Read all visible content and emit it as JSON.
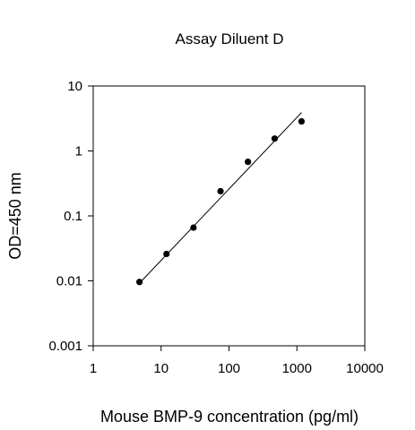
{
  "chart_data": {
    "type": "scatter",
    "title": "Assay Diluent D",
    "xlabel": "Mouse BMP-9 concentration (pg/ml)",
    "ylabel": "OD=450 nm",
    "x_scale": "log",
    "y_scale": "log",
    "xlim": [
      1,
      10000
    ],
    "ylim": [
      0.001,
      10
    ],
    "x_ticks": [
      {
        "value": 1,
        "label": "1"
      },
      {
        "value": 10,
        "label": "10"
      },
      {
        "value": 100,
        "label": "100"
      },
      {
        "value": 1000,
        "label": "1000"
      },
      {
        "value": 10000,
        "label": "10000"
      }
    ],
    "y_ticks": [
      {
        "value": 0.001,
        "label": "0.001"
      },
      {
        "value": 0.01,
        "label": "0.01"
      },
      {
        "value": 0.1,
        "label": "0.1"
      },
      {
        "value": 1,
        "label": "1"
      },
      {
        "value": 10,
        "label": "10"
      }
    ],
    "grid": false,
    "legend": "none",
    "marker_color": "#000000",
    "points": [
      {
        "x": 4.8,
        "y": 0.0096
      },
      {
        "x": 12,
        "y": 0.026
      },
      {
        "x": 30,
        "y": 0.066
      },
      {
        "x": 75,
        "y": 0.24
      },
      {
        "x": 190,
        "y": 0.68
      },
      {
        "x": 470,
        "y": 1.55
      },
      {
        "x": 1170,
        "y": 2.85
      }
    ],
    "fit_line": {
      "x": [
        4.8,
        1170
      ],
      "y": [
        0.0092,
        3.9
      ]
    }
  }
}
